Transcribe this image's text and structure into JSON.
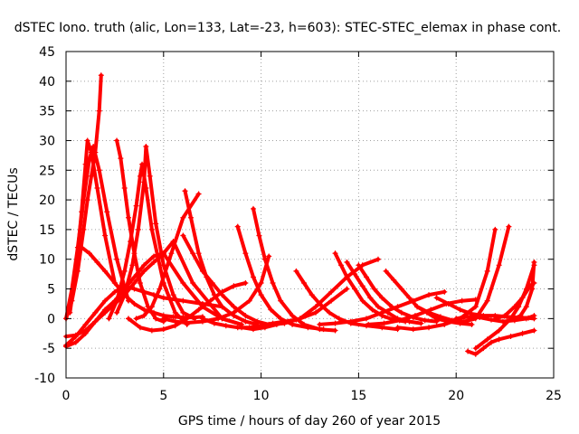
{
  "chart_data": {
    "type": "scatter",
    "title": "dSTEC Iono. truth (alic, Lon=133, Lat=-23, h=603): STEC-STEC_elemax in phase cont.",
    "xlabel": "GPS time / hours of day 260 of year 2015",
    "ylabel": "dSTEC  / TECUs",
    "xlim": [
      0,
      25
    ],
    "ylim": [
      -10,
      45
    ],
    "xticks": [
      0,
      5,
      10,
      15,
      20,
      25
    ],
    "yticks": [
      -10,
      -5,
      0,
      5,
      10,
      15,
      20,
      25,
      30,
      35,
      40,
      45
    ],
    "xtick_labels": [
      "0",
      "5",
      "10",
      "15",
      "20",
      "25"
    ],
    "ytick_labels": [
      "-10",
      "-5",
      "0",
      "5",
      "10",
      "15",
      "20",
      "25",
      "30",
      "35",
      "40",
      "45"
    ],
    "grid": true,
    "legend": "none",
    "marker": "+",
    "color": "#ff0000",
    "series": [
      {
        "x": [
          0.0,
          0.3,
          0.6,
          0.9,
          1.1,
          1.3,
          1.5,
          1.7,
          1.8
        ],
        "y": [
          0,
          3,
          8,
          15,
          20,
          24,
          28,
          35,
          41
        ]
      },
      {
        "x": [
          0.2,
          0.5,
          0.8,
          1.0,
          1.1,
          1.3,
          1.6,
          2.0,
          2.5
        ],
        "y": [
          1,
          8,
          18,
          26,
          30,
          28,
          22,
          14,
          6
        ]
      },
      {
        "x": [
          0.0,
          0.3,
          0.6,
          0.9,
          1.2,
          1.4,
          1.7,
          2.1,
          2.6,
          3.2
        ],
        "y": [
          0,
          5,
          12,
          20,
          27,
          29,
          25,
          18,
          10,
          3
        ]
      },
      {
        "x": [
          0.0,
          0.5,
          1.0,
          1.5,
          2.0,
          2.5,
          3.0,
          3.5,
          4.0,
          4.5,
          5.0,
          5.5,
          6.5,
          8.0,
          9.0
        ],
        "y": [
          -3,
          -2.8,
          -2,
          -0.5,
          1,
          2.5,
          4,
          6,
          8,
          9.5,
          11,
          13,
          6,
          0,
          -1
        ]
      },
      {
        "x": [
          0.0,
          0.5,
          1.0,
          1.5,
          2.0,
          2.5,
          3.0,
          3.5,
          4.0,
          4.5,
          5.0,
          6.0,
          7.0,
          8.0,
          9.0
        ],
        "y": [
          -4.7,
          -4,
          -2.5,
          -0.5,
          1.5,
          3,
          5,
          7,
          9,
          10.5,
          11,
          6,
          2,
          0,
          -1
        ]
      },
      {
        "x": [
          0.0,
          0.5,
          1.0,
          1.5,
          2.0,
          2.5,
          3.0,
          3.5,
          4.0,
          4.5,
          5.0,
          6.0,
          7.0,
          8.0
        ],
        "y": [
          -4.5,
          -3,
          -1,
          1,
          3,
          4.5,
          5.5,
          5,
          4.5,
          4,
          3.5,
          3,
          2.5,
          2
        ]
      },
      {
        "x": [
          0.8,
          1.2,
          1.6,
          2.0,
          2.5,
          3.0,
          3.5,
          4.0,
          4.5,
          5.0,
          5.5,
          6.0,
          6.5,
          7.0
        ],
        "y": [
          12,
          11,
          9.5,
          8,
          6,
          4,
          2.5,
          1.5,
          1,
          0.5,
          0.3,
          0.2,
          0.2,
          0.3
        ]
      },
      {
        "x": [
          2.6,
          2.8,
          3.0,
          3.2,
          3.5,
          3.8,
          4.2,
          4.6,
          5.0
        ],
        "y": [
          30,
          27,
          22,
          17,
          11,
          6,
          2,
          0,
          -0.5
        ]
      },
      {
        "x": [
          2.2,
          2.6,
          3.0,
          3.3,
          3.6,
          3.8,
          3.9,
          4.1,
          4.4,
          5.0,
          5.6,
          6.2
        ],
        "y": [
          0,
          3,
          8,
          13,
          19,
          24,
          26,
          22,
          15,
          6,
          1,
          -1
        ]
      },
      {
        "x": [
          2.6,
          3.0,
          3.4,
          3.7,
          4.0,
          4.1,
          4.3,
          4.6,
          5.0,
          5.5,
          6.0,
          6.6
        ],
        "y": [
          1,
          4,
          9,
          15,
          23,
          29,
          24,
          16,
          9,
          4,
          1,
          0
        ]
      },
      {
        "x": [
          3.2,
          3.8,
          4.4,
          5.0,
          5.6,
          6.2,
          6.8,
          7.4,
          8.0,
          8.6,
          9.2
        ],
        "y": [
          0,
          -1.5,
          -2,
          -1.8,
          -1.2,
          0,
          1.5,
          3,
          4.5,
          5.5,
          6
        ]
      },
      {
        "x": [
          3.6,
          4.0,
          4.4,
          4.8,
          5.4,
          6.0,
          6.8
        ],
        "y": [
          0,
          0.5,
          2,
          5,
          11,
          17,
          21
        ]
      },
      {
        "x": [
          6.1,
          6.4,
          6.8,
          7.2,
          7.6,
          8.0,
          8.6,
          9.2,
          9.8
        ],
        "y": [
          21.5,
          17,
          11,
          7,
          4,
          2,
          0.5,
          -0.5,
          -1
        ]
      },
      {
        "x": [
          6.0,
          6.5,
          7.0,
          7.5,
          8.0,
          8.6,
          9.2,
          9.8,
          10.4
        ],
        "y": [
          14,
          11,
          8,
          6,
          4,
          2,
          0.5,
          -0.5,
          -1
        ]
      },
      {
        "x": [
          5.0,
          5.6,
          6.2,
          7.0,
          7.8,
          8.6,
          9.4,
          10.0,
          10.4
        ],
        "y": [
          0,
          -0.5,
          -0.7,
          -0.5,
          0,
          1,
          3,
          6,
          10.5
        ]
      },
      {
        "x": [
          8.8,
          9.2,
          9.6,
          10.0,
          10.5,
          11.0,
          11.6,
          12.4,
          13.2
        ],
        "y": [
          15.5,
          11,
          7,
          4,
          1.5,
          0,
          -1,
          -1.5,
          -1.8
        ]
      },
      {
        "x": [
          9.6,
          9.9,
          10.2,
          10.6,
          11.0,
          11.6,
          12.2,
          13.0,
          13.8
        ],
        "y": [
          18.5,
          14,
          10,
          6,
          3,
          0.5,
          -1,
          -1.8,
          -2
        ]
      },
      {
        "x": [
          9.0,
          9.6,
          10.2,
          10.8,
          11.4,
          12.0,
          12.8,
          13.6,
          14.4
        ],
        "y": [
          -1.5,
          -1.8,
          -1.5,
          -1,
          -0.5,
          0,
          1,
          3,
          5
        ]
      },
      {
        "x": [
          11.8,
          12.2,
          12.6,
          13.0,
          13.5,
          14.0,
          14.6,
          15.4,
          16.2,
          17.0
        ],
        "y": [
          8,
          6,
          4,
          2.5,
          1,
          0,
          -0.8,
          -1.2,
          -1.5,
          -1.8
        ]
      },
      {
        "x": [
          10.5,
          11.2,
          12.0,
          12.8,
          13.6,
          14.4,
          15.2,
          16.0
        ],
        "y": [
          -1,
          -0.8,
          0,
          2,
          4.5,
          7,
          9,
          10
        ]
      },
      {
        "x": [
          13.8,
          14.1,
          14.4,
          14.8,
          15.2,
          15.7,
          16.2,
          16.8,
          17.4
        ],
        "y": [
          11,
          9,
          7,
          5,
          3,
          1.5,
          0.5,
          -0.2,
          -0.5
        ]
      },
      {
        "x": [
          14.4,
          14.8,
          15.2,
          15.6,
          16.0,
          16.5,
          17.0,
          17.6,
          18.2
        ],
        "y": [
          9.5,
          7.5,
          5.5,
          3.5,
          2,
          1,
          0,
          -0.5,
          -0.8
        ]
      },
      {
        "x": [
          15.0,
          15.4,
          15.8,
          16.2,
          16.7,
          17.2,
          17.8,
          18.4,
          19.0
        ],
        "y": [
          9,
          7,
          5,
          3.5,
          2,
          1,
          0.2,
          -0.3,
          -0.5
        ]
      },
      {
        "x": [
          13.0,
          13.8,
          14.6,
          15.4,
          16.2,
          17.0,
          17.8,
          18.6,
          19.4
        ],
        "y": [
          -1,
          -0.8,
          -0.5,
          0,
          1,
          2,
          3,
          4,
          4.5
        ]
      },
      {
        "x": [
          16.4,
          16.8,
          17.2,
          17.6,
          18.0,
          18.5,
          19.0,
          19.6,
          20.2,
          20.8
        ],
        "y": [
          8,
          6.5,
          5,
          3.5,
          2,
          1,
          0,
          -0.5,
          -0.8,
          -1
        ]
      },
      {
        "x": [
          15.5,
          16.3,
          17.1,
          17.9,
          18.7,
          19.5,
          20.3,
          21.0
        ],
        "y": [
          -1,
          -0.8,
          -0.3,
          0.5,
          1.5,
          2.5,
          3,
          3.2
        ]
      },
      {
        "x": [
          17.0,
          17.8,
          18.6,
          19.4,
          20.2,
          21.0,
          21.6,
          22.0
        ],
        "y": [
          -1.5,
          -1.8,
          -1.5,
          -1,
          0,
          2,
          8,
          15
        ]
      },
      {
        "x": [
          18.0,
          18.6,
          19.2,
          19.8,
          20.4,
          21.0,
          21.6,
          22.2,
          22.7
        ],
        "y": [
          2,
          1,
          0.3,
          -0.3,
          -0.5,
          0,
          3,
          9,
          15.5
        ]
      },
      {
        "x": [
          19.0,
          19.6,
          20.2,
          20.8,
          21.4,
          22.0,
          22.6,
          23.2,
          23.7,
          24.0
        ],
        "y": [
          3.5,
          2.5,
          1.5,
          0.8,
          0.5,
          0.5,
          0.3,
          0.2,
          0.1,
          0
        ]
      },
      {
        "x": [
          20.6,
          21.0,
          21.4,
          21.8,
          22.2,
          22.8,
          23.4,
          24.0
        ],
        "y": [
          -5.5,
          -6,
          -5,
          -4,
          -3.5,
          -3,
          -2.5,
          -2
        ]
      },
      {
        "x": [
          21.0,
          21.6,
          22.2,
          22.8,
          23.2,
          23.6,
          24.0
        ],
        "y": [
          -5,
          -3.5,
          -2,
          0,
          2,
          5,
          9
        ]
      },
      {
        "x": [
          22.0,
          22.5,
          23.0,
          23.4,
          23.8,
          24.0
        ],
        "y": [
          0,
          0.5,
          2,
          3.5,
          5.5,
          6
        ]
      },
      {
        "x": [
          23.0,
          23.3,
          23.6,
          23.9,
          24.0
        ],
        "y": [
          0,
          0.5,
          2,
          5,
          9.5
        ]
      },
      {
        "x": [
          20.0,
          20.6,
          21.2,
          21.8,
          22.4,
          23.0,
          23.6,
          24.0
        ],
        "y": [
          0,
          0.3,
          0.2,
          -0.2,
          -0.5,
          -0.3,
          0,
          0.5
        ]
      },
      {
        "x": [
          7.0,
          7.6,
          8.2,
          8.8,
          9.4,
          10.0,
          10.6,
          11.2,
          11.8
        ],
        "y": [
          0,
          -0.8,
          -1.2,
          -1.5,
          -1.5,
          -1.2,
          -0.8,
          -0.5,
          -0.2
        ]
      }
    ]
  }
}
